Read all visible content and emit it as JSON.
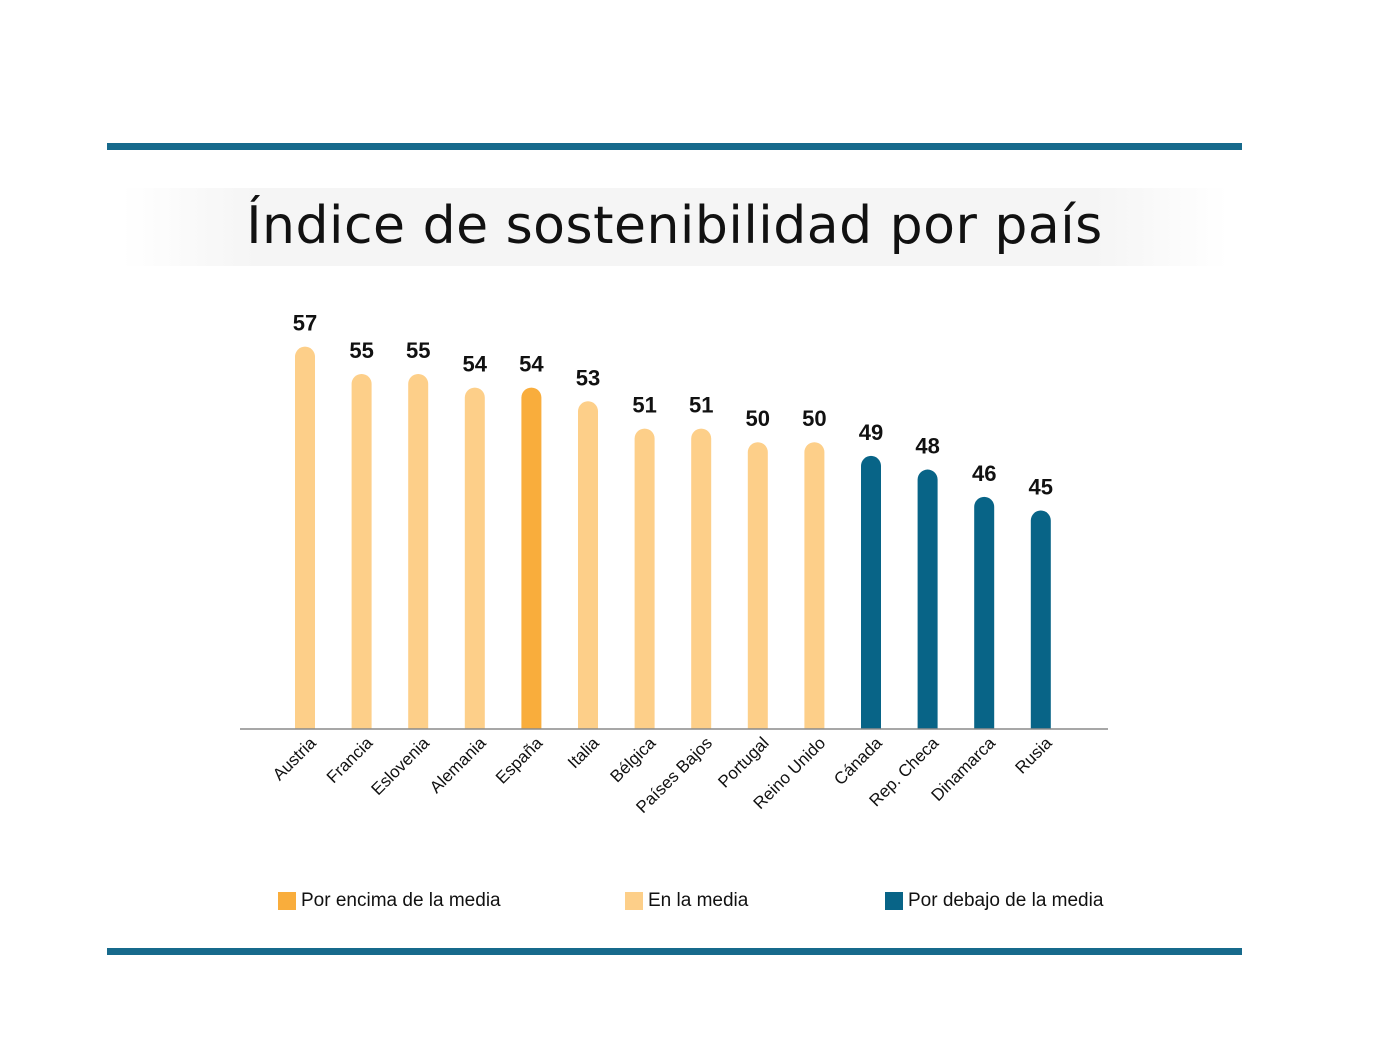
{
  "chart_data": {
    "type": "bar",
    "title": "Índice de sostenibilidad por país",
    "categories": [
      "Austria",
      "Francia",
      "Eslovenia",
      "Alemania",
      "España",
      "Italia",
      "Bélgica",
      "Países Bajos",
      "Portugal",
      "Reino Unido",
      "Cánada",
      "Rep. Checa",
      "Dinamarca",
      "Rusia"
    ],
    "values": [
      57,
      55,
      55,
      54,
      54,
      53,
      51,
      51,
      50,
      50,
      49,
      48,
      46,
      45
    ],
    "group_index": [
      1,
      1,
      1,
      1,
      0,
      1,
      1,
      1,
      1,
      1,
      2,
      2,
      2,
      2
    ],
    "groups": [
      {
        "name": "Por encima de la media",
        "color": "#f9ad3c"
      },
      {
        "name": "En la media",
        "color": "#fdcf89"
      },
      {
        "name": "Por debajo de la media",
        "color": "#086487"
      }
    ],
    "ylim": [
      29,
      58
    ],
    "legend_position": "bottom",
    "grid": false,
    "value_labels": true
  }
}
